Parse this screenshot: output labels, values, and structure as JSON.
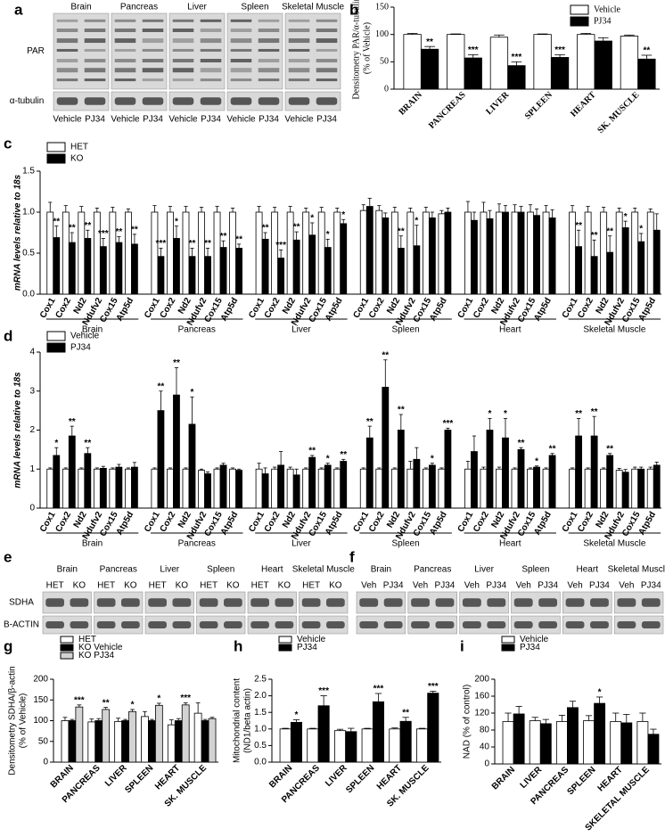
{
  "blots": [
    {
      "panel": "a",
      "rows": [
        "PAR",
        "α-tubulin"
      ],
      "groups": [
        {
          "name": "Brain",
          "lanes": [
            "Vehicle",
            "PJ34"
          ]
        },
        {
          "name": "Pancreas",
          "lanes": [
            "Vehicle",
            "PJ34"
          ]
        },
        {
          "name": "Liver",
          "lanes": [
            "Vehicle",
            "PJ34"
          ]
        },
        {
          "name": "Spleen",
          "lanes": [
            "Vehicle",
            "PJ34"
          ]
        },
        {
          "name": "Skeletal Muscle",
          "lanes": [
            "Vehicle",
            "PJ34"
          ]
        }
      ]
    },
    {
      "panel": "e",
      "rows": [
        "SDHA",
        "B-ACTIN"
      ],
      "groups": [
        {
          "name": "Brain",
          "lanes": [
            "HET",
            "KO"
          ]
        },
        {
          "name": "Pancreas",
          "lanes": [
            "HET",
            "KO"
          ]
        },
        {
          "name": "Liver",
          "lanes": [
            "HET",
            "KO"
          ]
        },
        {
          "name": "Spleen",
          "lanes": [
            "HET",
            "KO"
          ]
        },
        {
          "name": "Heart",
          "lanes": [
            "HET",
            "KO"
          ]
        },
        {
          "name": "Skeletal Muscle",
          "lanes": [
            "HET",
            "KO"
          ]
        }
      ]
    },
    {
      "panel": "f",
      "groups": [
        {
          "name": "Brain",
          "lanes": [
            "Veh",
            "PJ34"
          ]
        },
        {
          "name": "Pancreas",
          "lanes": [
            "Veh",
            "PJ34"
          ]
        },
        {
          "name": "Liver",
          "lanes": [
            "Veh",
            "PJ34"
          ]
        },
        {
          "name": "Spleen",
          "lanes": [
            "Veh",
            "PJ34"
          ]
        },
        {
          "name": "Heart",
          "lanes": [
            "Veh",
            "PJ34"
          ]
        },
        {
          "name": "Skeletal Muscle",
          "lanes": [
            "Veh",
            "PJ34"
          ]
        }
      ]
    }
  ],
  "chart_data": [
    {
      "type": "bar",
      "panel": "b",
      "ylabel": [
        "Densitometry PAR/α-tubulin",
        "(% of Vehicle)"
      ],
      "categories": [
        "BRAIN",
        "PANCREAS",
        "LIVER",
        "SPLEEN",
        "HEART",
        "SK. MUSCLE"
      ],
      "ylim": [
        0,
        150
      ],
      "yticks": [
        0,
        50,
        100,
        150
      ],
      "legend": "upper right",
      "series": [
        {
          "name": "Vehicle",
          "color": "#ffffff",
          "values": [
            100,
            100,
            95,
            100,
            100,
            97
          ],
          "errors": [
            2,
            1,
            4,
            1,
            2,
            2
          ]
        },
        {
          "name": "PJ34",
          "color": "#000000",
          "values": [
            73,
            57,
            43,
            58,
            88,
            55
          ],
          "errors": [
            5,
            6,
            7,
            5,
            6,
            7
          ],
          "significance": [
            "**",
            "***",
            "***",
            "***",
            null,
            "**"
          ]
        }
      ]
    },
    {
      "type": "bar",
      "panel": "c",
      "ylabel": [
        "mRNA levels relative to 18s"
      ],
      "groups": [
        "Brain",
        "Pancreas",
        "Liver",
        "Spleen",
        "Heart",
        "Skeletal Muscle"
      ],
      "categories": [
        "Cox1",
        "Cox2",
        "Nd2",
        "Ndufv2",
        "Cox15",
        "Atp5d",
        "Cox1",
        "Cox2",
        "Nd2",
        "Ndufv2",
        "Cox15",
        "Atp5d",
        "Cox1",
        "Cox2",
        "Nd2",
        "Ndufv2",
        "Cox15",
        "Atp5d",
        "Cox1",
        "Cox2",
        "Nd2",
        "Ndufv2",
        "Cox15",
        "Atp5d",
        "Cox1",
        "Cox2",
        "Nd2",
        "Ndufv2",
        "Cox15",
        "Atp5d",
        "Cox1",
        "Cox2",
        "Nd2",
        "Ndufv2",
        "Cox15",
        "Atp5d"
      ],
      "ylim": [
        0,
        1.5
      ],
      "yticks": [
        {
          "value": 0,
          "label": "0.0"
        },
        0.5,
        {
          "value": 1,
          "label": "1.0"
        },
        1.5
      ],
      "legend": "upper left",
      "series": [
        {
          "name": "HET",
          "color": "#ffffff",
          "values": [
            1,
            1,
            1,
            1,
            1,
            1,
            1,
            1,
            1,
            1,
            1,
            1,
            1,
            1,
            1,
            1,
            1,
            1,
            1.02,
            1.02,
            1,
            1,
            1,
            0.98,
            1,
            1,
            1,
            1,
            1,
            1,
            1,
            1,
            1,
            1,
            1,
            1
          ],
          "errors": [
            0.12,
            0.08,
            0.07,
            0.05,
            0.06,
            0.04,
            0.08,
            0.07,
            0.07,
            0.06,
            0.07,
            0.05,
            0.07,
            0.06,
            0.07,
            0.05,
            0.06,
            0.05,
            0.07,
            0.06,
            0.06,
            0.05,
            0.06,
            0.04,
            0.13,
            0.12,
            0.1,
            0.09,
            0.09,
            0.08,
            0.08,
            0.07,
            0.06,
            0.05,
            0.05,
            0.04
          ]
        },
        {
          "name": "KO",
          "color": "#000000",
          "values": [
            0.69,
            0.63,
            0.68,
            0.58,
            0.63,
            0.61,
            0.46,
            0.68,
            0.46,
            0.46,
            0.57,
            0.56,
            0.67,
            0.44,
            0.66,
            0.72,
            0.57,
            0.86,
            1.07,
            0.93,
            0.56,
            0.59,
            0.93,
            1.0,
            0.9,
            0.92,
            1.0,
            1.0,
            0.96,
            0.93,
            0.58,
            0.46,
            0.51,
            0.81,
            0.64,
            0.78
          ],
          "errors": [
            0.14,
            0.12,
            0.1,
            0.1,
            0.07,
            0.12,
            0.1,
            0.15,
            0.1,
            0.1,
            0.08,
            0.05,
            0.08,
            0.1,
            0.1,
            0.15,
            0.1,
            0.05,
            0.1,
            0.06,
            0.15,
            0.25,
            0.07,
            0.05,
            0.1,
            0.1,
            0.08,
            0.07,
            0.08,
            0.1,
            0.2,
            0.2,
            0.2,
            0.08,
            0.1,
            0.2
          ],
          "significance": [
            "**",
            "**",
            "**",
            "***",
            "**",
            "**",
            "***",
            "*",
            "**",
            "**",
            "**",
            "**",
            "**",
            "***",
            "**",
            "*",
            "*",
            "*",
            null,
            null,
            "**",
            "*",
            null,
            null,
            null,
            null,
            null,
            null,
            null,
            null,
            "**",
            "**",
            "**",
            "*",
            "*",
            null
          ]
        }
      ]
    },
    {
      "type": "bar",
      "panel": "d",
      "ylabel": [
        "mRNA levels relative to 18s"
      ],
      "groups": [
        "Brain",
        "Pancreas",
        "Liver",
        "Spleen",
        "Heart",
        "Skeletal Muscle"
      ],
      "categories": [
        "Cox1",
        "Cox2",
        "Nd2",
        "Ndufv2",
        "Cox15",
        "Atp5d",
        "Cox1",
        "Cox2",
        "Nd2",
        "Ndufv2",
        "Cox15",
        "Atp5d",
        "Cox1",
        "Cox2",
        "Nd2",
        "Ndufv2",
        "Cox15",
        "Atp5d",
        "Cox1",
        "Cox2",
        "Nd2",
        "Ndufv2",
        "Cox15",
        "Atp5d",
        "Cox1",
        "Cox2",
        "Nd2",
        "Ndufv2",
        "Cox15",
        "Atp5d",
        "Cox1",
        "Cox2",
        "Nd2",
        "Ndufv2",
        "Cox15",
        "Atp5d"
      ],
      "ylim": [
        0,
        4
      ],
      "yticks": [
        0,
        1,
        2,
        3,
        4
      ],
      "legend": "upper left",
      "series": [
        {
          "name": "Vehicle",
          "color": "#ffffff",
          "values": [
            1,
            1,
            1,
            1,
            1,
            1,
            1,
            1,
            1,
            0.97,
            1,
            1,
            1,
            1,
            1,
            1,
            1,
            1,
            1,
            1,
            1,
            1,
            1,
            1,
            1,
            1,
            1,
            1,
            1,
            1,
            1,
            1,
            1,
            0.97,
            1,
            1
          ],
          "errors": [
            0.03,
            0.03,
            0.03,
            0.03,
            0.03,
            0.03,
            0.03,
            0.03,
            0.03,
            0.03,
            0.03,
            0.03,
            0.15,
            0.05,
            0.05,
            0.03,
            0.03,
            0.03,
            0.03,
            0.03,
            0.03,
            0.2,
            0.03,
            0.03,
            0.2,
            0.05,
            0.05,
            0.03,
            0.03,
            0.03,
            0.03,
            0.03,
            0.03,
            0.05,
            0.05,
            0.05
          ]
        },
        {
          "name": "PJ34",
          "color": "#000000",
          "values": [
            1.35,
            1.85,
            1.4,
            1.02,
            1.05,
            1.05,
            2.5,
            2.9,
            2.15,
            0.88,
            1.1,
            0.97,
            0.88,
            1.1,
            0.85,
            1.3,
            1.1,
            1.2,
            1.8,
            3.1,
            2.0,
            1.25,
            1.1,
            2.0,
            1.45,
            2.0,
            1.8,
            1.5,
            1.05,
            1.35,
            1.85,
            1.85,
            1.35,
            0.92,
            1.0,
            1.1
          ],
          "errors": [
            0.2,
            0.25,
            0.15,
            0.05,
            0.07,
            0.12,
            0.5,
            0.7,
            0.7,
            0.05,
            0.05,
            0.03,
            0.15,
            0.35,
            0.15,
            0.05,
            0.05,
            0.05,
            0.3,
            0.7,
            0.4,
            0.3,
            0.05,
            0.05,
            0.4,
            0.3,
            0.5,
            0.05,
            0.03,
            0.05,
            0.45,
            0.5,
            0.05,
            0.07,
            0.05,
            0.08
          ],
          "significance": [
            "*",
            "**",
            "**",
            null,
            null,
            null,
            "**",
            "**",
            "*",
            null,
            null,
            null,
            null,
            null,
            null,
            "**",
            "*",
            "**",
            "**",
            "**",
            "**",
            null,
            "*",
            "***",
            null,
            "*",
            "*",
            "**",
            "*",
            "**",
            "**",
            "**",
            "**",
            null,
            null,
            null
          ]
        }
      ]
    },
    {
      "type": "bar",
      "panel": "g",
      "ylabel": [
        "Densitometry SDHA/β-actin",
        "(% of Vehicle)"
      ],
      "categories": [
        "BRAIN",
        "PANCREAS",
        "LIVER",
        "SPLEEN",
        "HEART",
        "SK. MUSCLE"
      ],
      "ylim": [
        0,
        200
      ],
      "yticks": [
        0,
        50,
        100,
        150,
        200
      ],
      "legend": "upper left",
      "series": [
        {
          "name": "HET",
          "color": "#ffffff",
          "values": [
            100,
            97,
            98,
            110,
            90,
            118
          ],
          "errors": [
            8,
            7,
            8,
            12,
            12,
            25
          ]
        },
        {
          "name": "KO Vehicle",
          "color": "#000000",
          "values": [
            100,
            100,
            100,
            100,
            100,
            100
          ],
          "errors": [
            3,
            5,
            3,
            3,
            5,
            3
          ]
        },
        {
          "name": "KO PJ34",
          "color": "#d3d3d3",
          "values": [
            133,
            127,
            122,
            137,
            138,
            105
          ],
          "errors": [
            5,
            5,
            5,
            5,
            5,
            3
          ],
          "significance": [
            "***",
            "**",
            "*",
            "*",
            "***",
            null
          ]
        }
      ]
    },
    {
      "type": "bar",
      "panel": "h",
      "ylabel": [
        "Mitochondrial content",
        "(ND1/beta actin)"
      ],
      "categories": [
        "BRAIN",
        "PANCREAS",
        "LIVER",
        "SPLEEN",
        "HEART",
        "SK. MUSCLE"
      ],
      "ylim": [
        0,
        2.5
      ],
      "yticks": [
        {
          "value": 0,
          "label": "0.0"
        },
        0.5,
        {
          "value": 1,
          "label": "1.0"
        },
        1.5,
        {
          "value": 2,
          "label": "2.0"
        },
        2.5
      ],
      "legend": "upper left",
      "series": [
        {
          "name": "Vehicle",
          "color": "#ffffff",
          "values": [
            1,
            1,
            0.95,
            1,
            1,
            1
          ],
          "errors": [
            0.02,
            0.02,
            0.04,
            0.02,
            0.03,
            0.02
          ]
        },
        {
          "name": "PJ34",
          "color": "#000000",
          "values": [
            1.2,
            1.7,
            0.92,
            1.82,
            1.23,
            2.08
          ],
          "errors": [
            0.08,
            0.3,
            0.1,
            0.25,
            0.12,
            0.06
          ],
          "significance": [
            "*",
            "***",
            null,
            "***",
            "**",
            "***"
          ]
        }
      ]
    },
    {
      "type": "bar",
      "panel": "i",
      "ylabel": [
        "NAD (% of control)"
      ],
      "categories": [
        "BRAIN",
        "LIVER",
        "PANCREAS",
        "SPLEEN",
        "HEART",
        "SKELETAL MUSCLE"
      ],
      "ylim": [
        0,
        200
      ],
      "yticks": [
        0,
        40,
        80,
        120,
        160,
        200
      ],
      "legend": "upper left",
      "series": [
        {
          "name": "Vehicle",
          "color": "#ffffff",
          "values": [
            100,
            102,
            100,
            102,
            100,
            100
          ],
          "errors": [
            20,
            8,
            15,
            12,
            20,
            20
          ]
        },
        {
          "name": "PJ34",
          "color": "#000000",
          "values": [
            118,
            95,
            133,
            143,
            97,
            70
          ],
          "errors": [
            18,
            10,
            15,
            15,
            20,
            12
          ],
          "significance": [
            null,
            null,
            null,
            "*",
            null,
            null
          ]
        }
      ]
    }
  ]
}
